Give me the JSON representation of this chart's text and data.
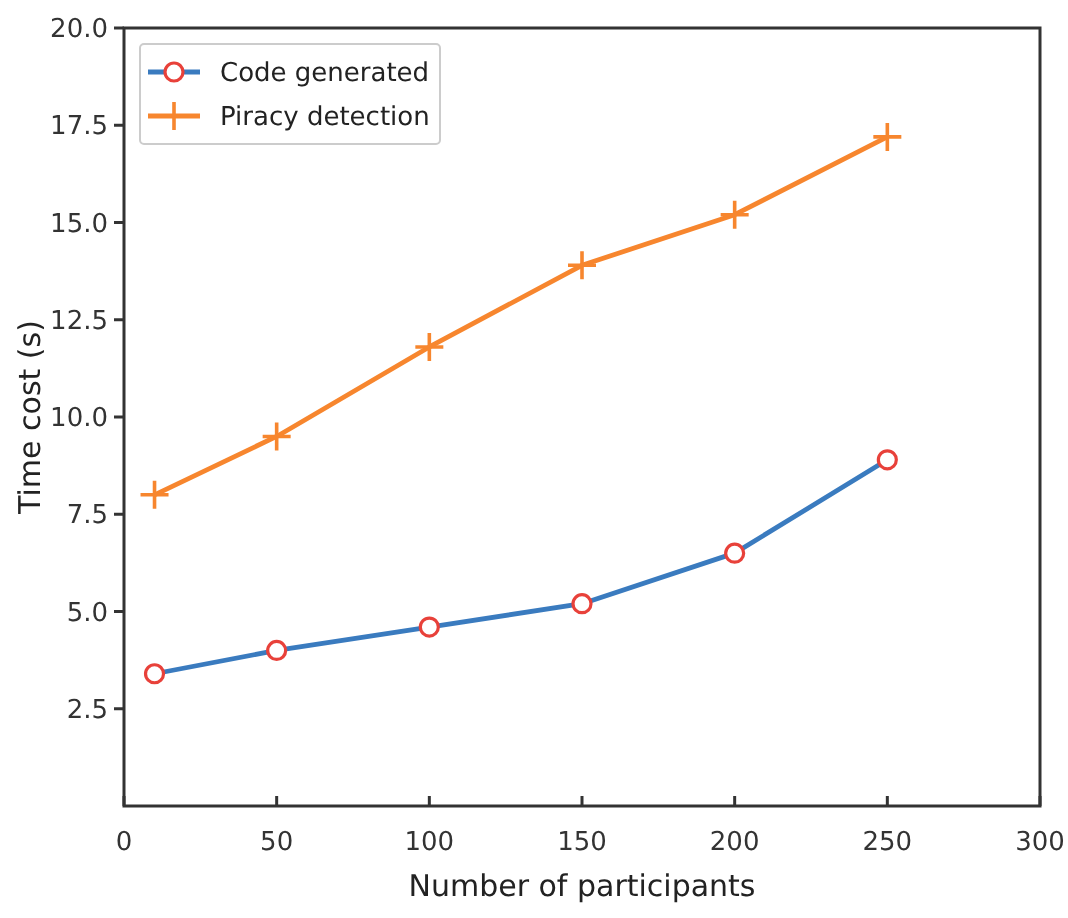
{
  "chart_data": {
    "type": "line",
    "xlabel": "Number of participants",
    "ylabel": "Time cost (s)",
    "x": [
      10,
      50,
      100,
      150,
      200,
      250
    ],
    "series": [
      {
        "name": "Code generated",
        "color": "#3a7bbf",
        "marker": "circle",
        "values": [
          3.4,
          4.0,
          4.6,
          5.2,
          6.5,
          8.9
        ]
      },
      {
        "name": "Piracy detection",
        "color": "#f7862e",
        "marker": "cross",
        "values": [
          8.0,
          9.5,
          11.8,
          13.9,
          15.2,
          17.2
        ]
      }
    ],
    "xlim": [
      0,
      300
    ],
    "xticks": [
      0,
      50,
      100,
      150,
      200,
      250,
      300
    ],
    "ylim": [
      0,
      20
    ],
    "yticks": [
      {
        "value": 2.5,
        "label": "2.5"
      },
      {
        "value": 5,
        "label": "5.0"
      },
      {
        "value": 7.5,
        "label": "7.5"
      },
      {
        "value": 10,
        "label": "10.0"
      },
      {
        "value": 12.5,
        "label": "12.5"
      },
      {
        "value": 15,
        "label": "15.0"
      },
      {
        "value": 17.5,
        "label": "17.5"
      },
      {
        "value": 20,
        "label": "20.0"
      }
    ],
    "grid": false,
    "legend": "top left",
    "line_style": "solid"
  }
}
